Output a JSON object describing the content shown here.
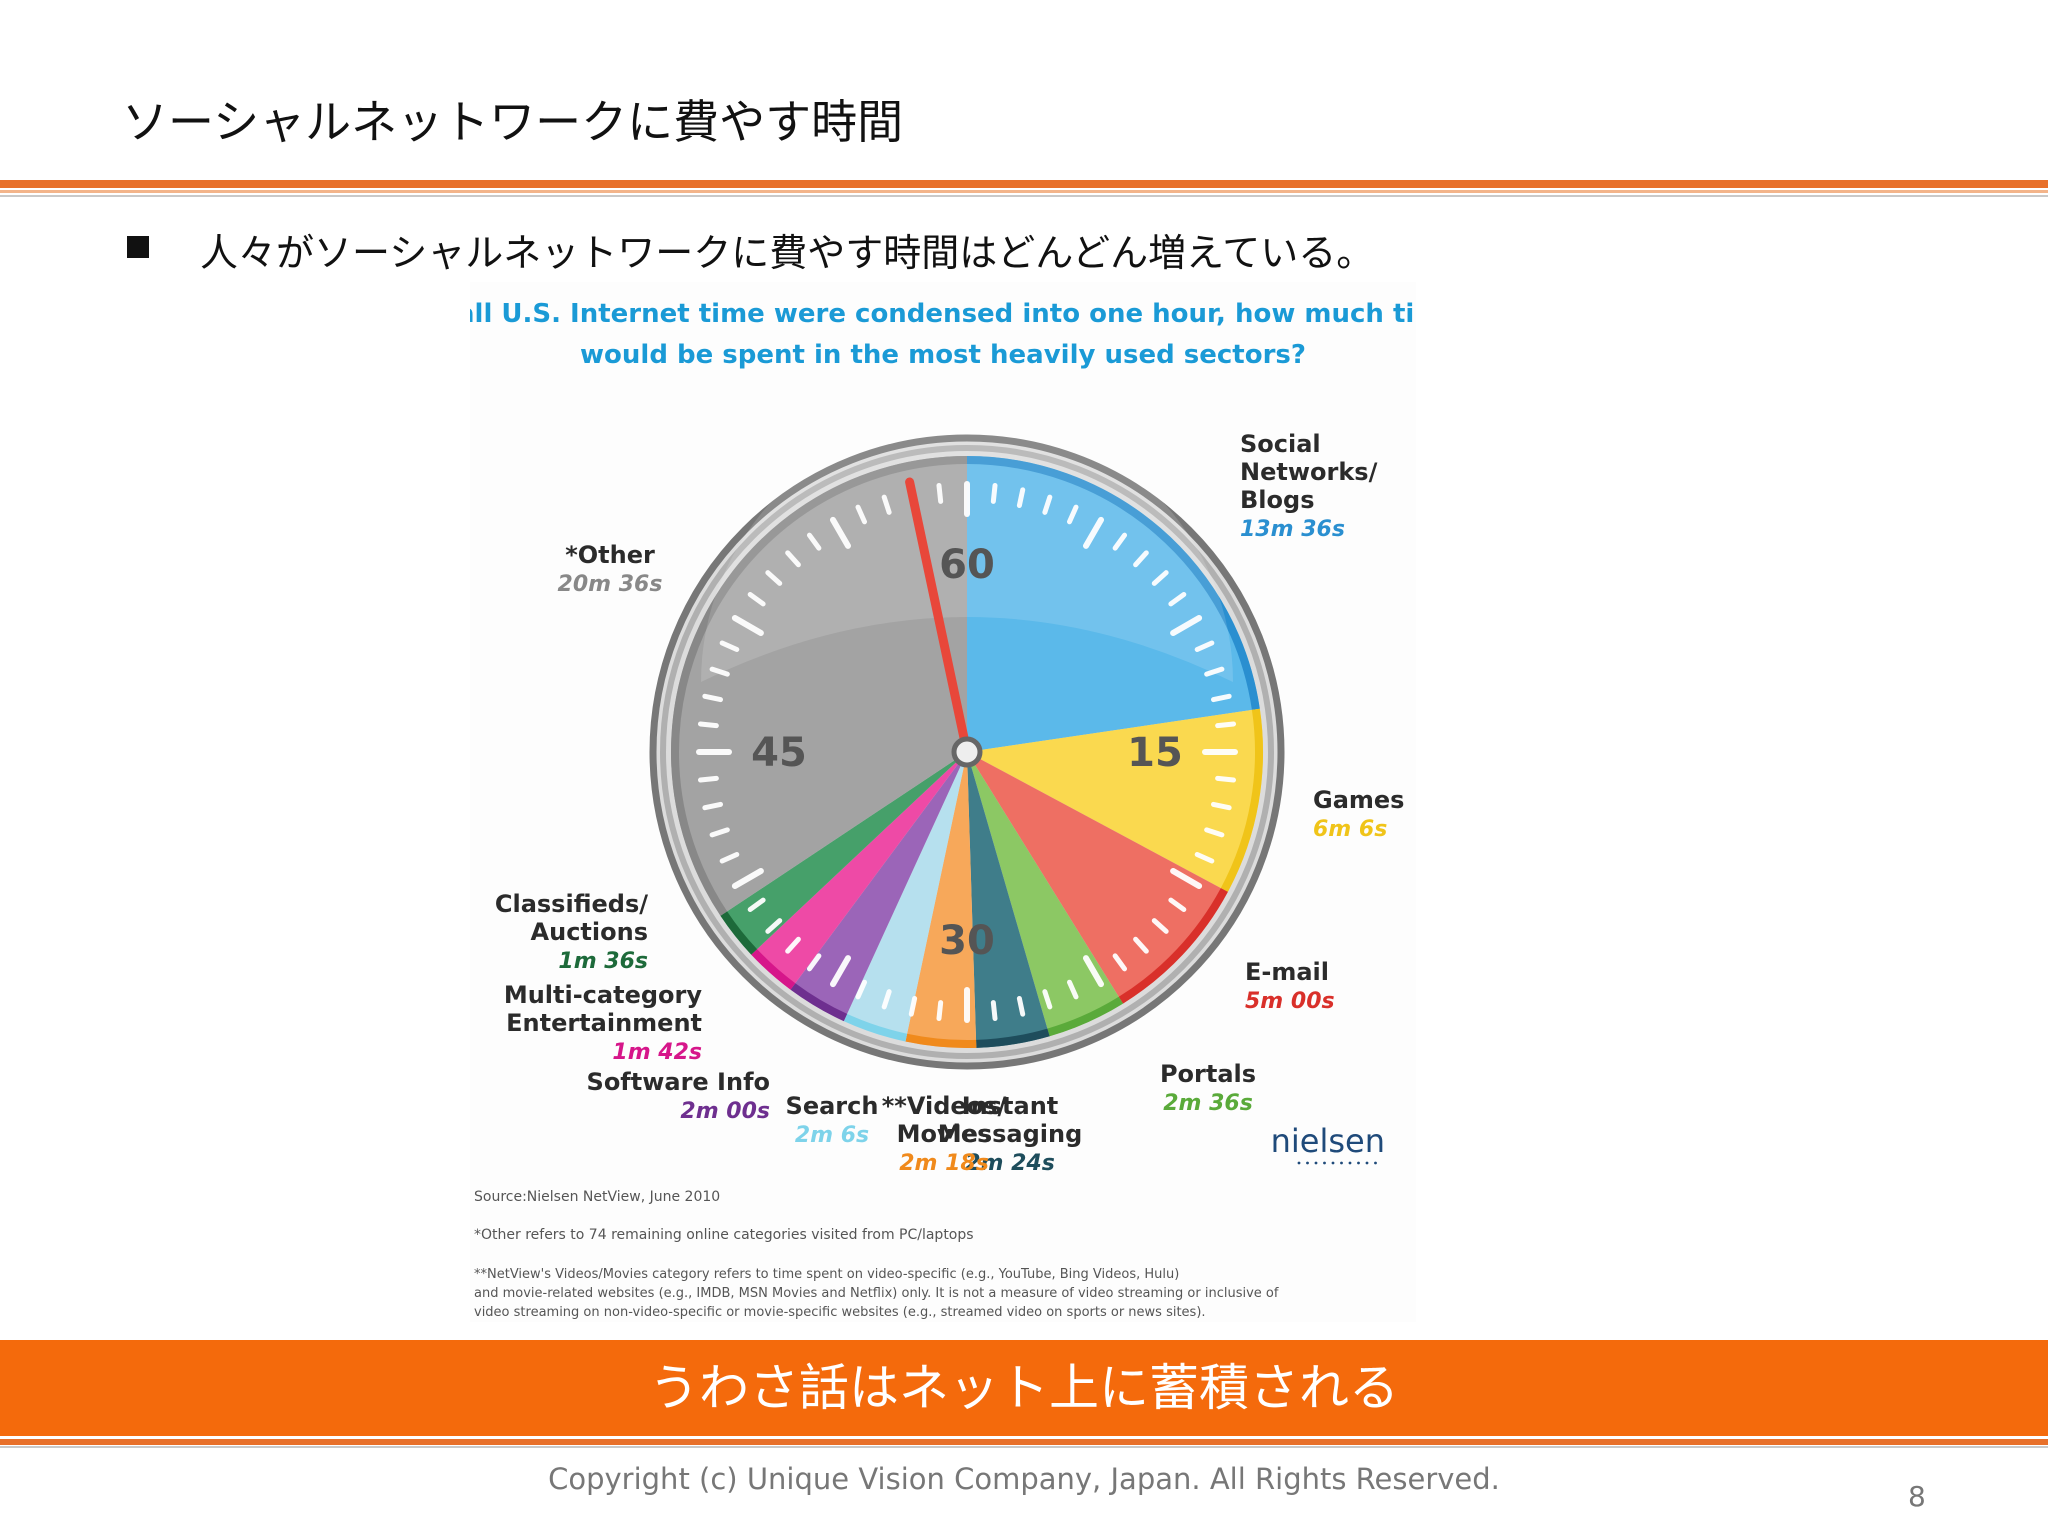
{
  "slide": {
    "title": "ソーシャルネットワークに費やす時間",
    "bullet": "人々がソーシャルネットワークに費やす時間はどんどん増えている。",
    "banner": "うわさ話はネット上に蓄積される",
    "copyright": "Copyright (c) Unique Vision Company, Japan. All Rights Reserved.",
    "page_number": "8"
  },
  "chart_data": {
    "type": "pie",
    "title_lines": [
      "If all U.S. Internet time were condensed into one hour, how much time",
      "would be spent in the most heavily used sectors?"
    ],
    "unit": "seconds out of 3600",
    "dial_labels": [
      "60",
      "15",
      "30",
      "45"
    ],
    "slices": [
      {
        "name_lines": [
          "Social",
          "Networks/",
          "Blogs"
        ],
        "time": "13m 36s",
        "seconds": 816,
        "color": "#5bb9ea",
        "time_color": "#2a8fd0"
      },
      {
        "name_lines": [
          "Games"
        ],
        "time": "6m 6s",
        "seconds": 366,
        "color": "#fad94f",
        "time_color": "#f0c419"
      },
      {
        "name_lines": [
          "E-mail"
        ],
        "time": "5m 00s",
        "seconds": 300,
        "color": "#ee6f63",
        "time_color": "#d9302a"
      },
      {
        "name_lines": [
          "Portals"
        ],
        "time": "2m 36s",
        "seconds": 156,
        "color": "#8cc864",
        "time_color": "#5aaa3a"
      },
      {
        "name_lines": [
          "Instant",
          "Messaging"
        ],
        "time": "2m 24s",
        "seconds": 144,
        "color": "#3f7d8a",
        "time_color": "#1e4d5c"
      },
      {
        "name_lines": [
          "**Videos/",
          "Movies"
        ],
        "time": "2m 18s",
        "seconds": 138,
        "color": "#f7a85a",
        "time_color": "#f08a1c"
      },
      {
        "name_lines": [
          "Search"
        ],
        "time": "2m 6s",
        "seconds": 126,
        "color": "#b6e0ee",
        "time_color": "#7ed3ea"
      },
      {
        "name_lines": [
          "Software Info"
        ],
        "time": "2m 00s",
        "seconds": 120,
        "color": "#9b65b8",
        "time_color": "#6e2f8f"
      },
      {
        "name_lines": [
          "Multi-category",
          "Entertainment"
        ],
        "time": "1m 42s",
        "seconds": 102,
        "color": "#ee4aa6",
        "time_color": "#d6168a"
      },
      {
        "name_lines": [
          "Classifieds/",
          "Auctions"
        ],
        "time": "1m 36s",
        "seconds": 96,
        "color": "#46a06a",
        "time_color": "#1d6a3a"
      },
      {
        "name_lines": [
          "*Other"
        ],
        "time": "20m 36s",
        "seconds": 1236,
        "color": "#a3a3a3",
        "time_color": "#888888"
      }
    ],
    "source_note": "Source:Nielsen NetView, June 2010",
    "footnotes": [
      "*Other refers to 74 remaining online categories visited from PC/laptops",
      "**NetView's Videos/Movies category refers to time spent on video-specific (e.g., YouTube, Bing Videos, Hulu)",
      "and movie-related websites (e.g., IMDB, MSN Movies and Netflix) only. It is not a measure of video streaming or inclusive of",
      "video streaming on non-video-specific or movie-specific websites (e.g., streamed video on sports or news sites)."
    ],
    "logo": "nielsen",
    "title_color": "#1a9ad6"
  }
}
